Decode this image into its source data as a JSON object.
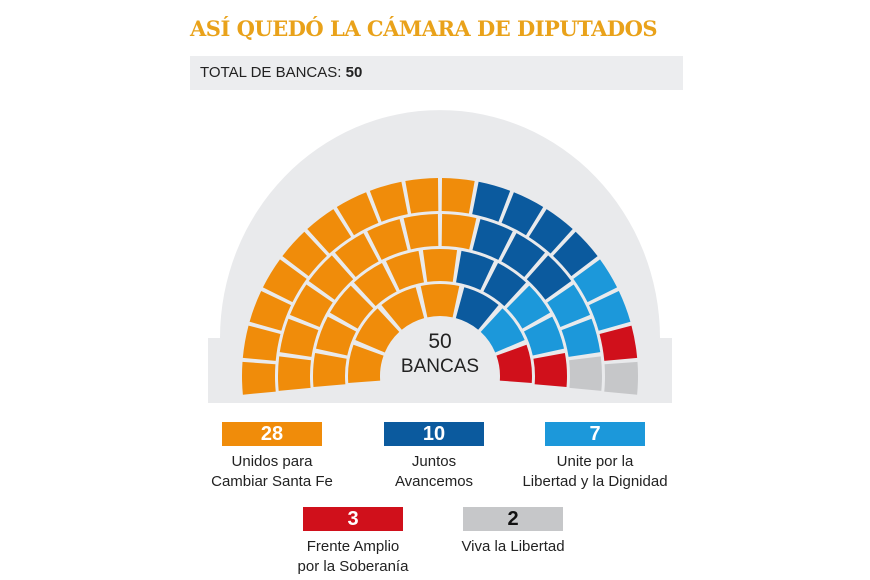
{
  "title": "ASÍ QUEDÓ LA CÁMARA DE DIPUTADOS",
  "total": {
    "label": "TOTAL DE BANCAS:",
    "value": "50"
  },
  "chart_data": {
    "type": "parliament",
    "total_seats": 50,
    "center_label": {
      "number": "50",
      "text": "BANCAS"
    },
    "series": [
      {
        "name": "Unidos para\nCambiar Santa Fe",
        "value": 28,
        "color": "#F08C0A"
      },
      {
        "name": "Juntos\nAvancemos",
        "value": 10,
        "color": "#0B5A9E"
      },
      {
        "name": "Unite por la\nLibertad y la Dignidad",
        "value": 7,
        "color": "#1C98DA"
      },
      {
        "name": "Frente Amplio\npor la Soberanía",
        "value": 3,
        "color": "#D0101B"
      },
      {
        "name": "Viva la Libertad",
        "value": 2,
        "color": "#C6C7C9"
      }
    ]
  }
}
